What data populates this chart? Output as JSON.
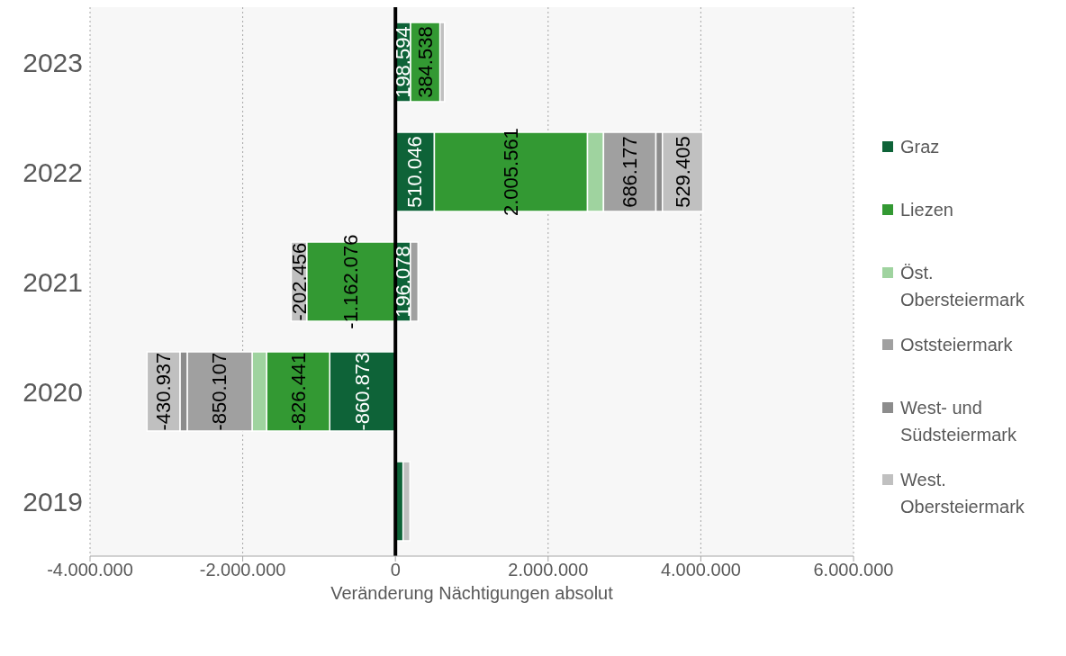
{
  "chart_data": {
    "type": "bar",
    "orientation": "horizontal",
    "stacked": true,
    "xlabel": "Veränderung Nächtigungen absolut",
    "categories": [
      "2023",
      "2022",
      "2021",
      "2020",
      "2019"
    ],
    "series": [
      {
        "name": "Graz",
        "color": "#0e6338",
        "values": [
          198594,
          510046,
          196078,
          -860873,
          100000
        ],
        "value_labels": [
          "198.594",
          "510.046",
          "196.078",
          "-860.873",
          null
        ]
      },
      {
        "name": "Liezen",
        "color": "#339933",
        "values": [
          384538,
          2005561,
          -1162076,
          -826441,
          null
        ],
        "value_labels": [
          "384.538",
          "2.005.561",
          "-1.162.076",
          "-826.441",
          null
        ]
      },
      {
        "name": "Öst. Obersteiermark",
        "color": "#9fd39f",
        "values": [
          null,
          210000,
          null,
          -190000,
          null
        ],
        "value_labels": [
          null,
          null,
          null,
          null,
          null
        ]
      },
      {
        "name": "Oststeiermark",
        "color": "#a0a0a0",
        "values": [
          null,
          686177,
          100000,
          -850107,
          null
        ],
        "value_labels": [
          null,
          "686.177",
          null,
          "-850.107",
          null
        ]
      },
      {
        "name": "West- und Südsteiermark",
        "color": "#8c8c8c",
        "values": [
          null,
          85000,
          null,
          -95000,
          null
        ],
        "value_labels": [
          null,
          null,
          null,
          null,
          null
        ]
      },
      {
        "name": "West. Obersteiermark",
        "color": "#c0c0c0",
        "values": [
          60000,
          529405,
          -202456,
          -430937,
          90000
        ],
        "value_labels": [
          null,
          "529.405",
          "-202.456",
          "-430.937",
          null
        ]
      }
    ],
    "xlim": [
      -4000000,
      6000000
    ],
    "xticks": [
      {
        "value": -4000000,
        "label": "-4.000.000"
      },
      {
        "value": -2000000,
        "label": "-2.000.000"
      },
      {
        "value": 0,
        "label": "0"
      },
      {
        "value": 2000000,
        "label": "2.000.000"
      },
      {
        "value": 4000000,
        "label": "4.000.000"
      },
      {
        "value": 6000000,
        "label": "6.000.000"
      }
    ],
    "ref_lines": [
      {
        "axis": "x",
        "value": 0,
        "color": "#000000"
      }
    ],
    "grid": "x",
    "legend": "right"
  }
}
